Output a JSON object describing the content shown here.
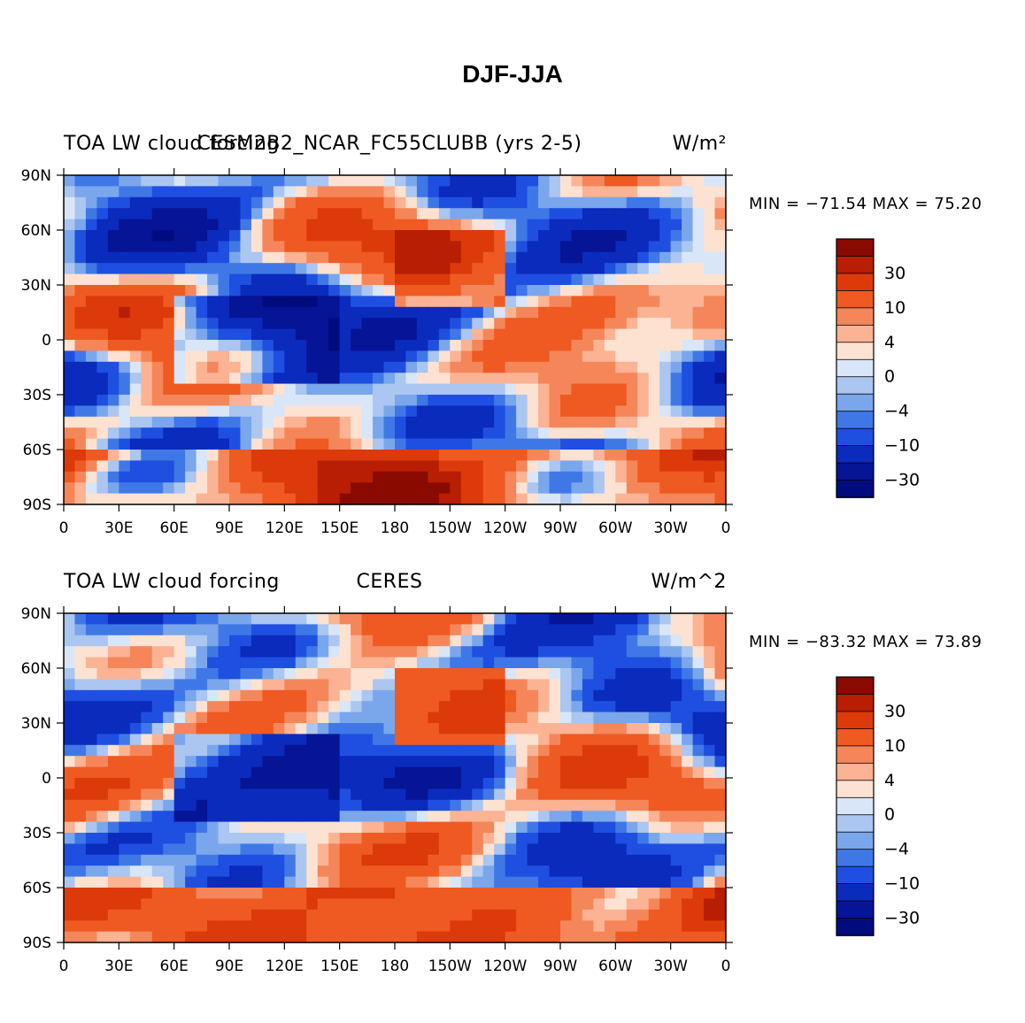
{
  "figure": {
    "title": "DJF-JJA"
  },
  "chart_data": [
    {
      "type": "heatmap",
      "panel": "model",
      "left_label": "TOA LW cloud forcing",
      "center_label": "CESM2B2_NCAR_FC55CLUBB (yrs 2-5)",
      "units_label": "W/m²",
      "stats": "MIN = −71.54 MAX =  75.20",
      "min": -71.54,
      "max": 75.2,
      "x_ticks": [
        "0",
        "30E",
        "60E",
        "90E",
        "120E",
        "150E",
        "180",
        "150W",
        "120W",
        "90W",
        "60W",
        "30W",
        "0"
      ],
      "y_ticks": [
        "90N",
        "60N",
        "30N",
        "0",
        "30S",
        "60S",
        "90S"
      ],
      "colorbar_labels": [
        "30",
        "10",
        "4",
        "0",
        "−4",
        "−10",
        "−30"
      ]
    },
    {
      "type": "heatmap",
      "panel": "observations",
      "left_label": "TOA LW cloud forcing",
      "center_label": "CERES",
      "units_label": "W/m^2",
      "stats": "MIN = −83.32 MAX =  73.89",
      "min": -83.32,
      "max": 73.89,
      "x_ticks": [
        "0",
        "30E",
        "60E",
        "90E",
        "120E",
        "150E",
        "180",
        "150W",
        "120W",
        "90W",
        "60W",
        "30W",
        "0"
      ],
      "y_ticks": [
        "90N",
        "60N",
        "30N",
        "0",
        "30S",
        "60S",
        "90S"
      ],
      "colorbar_labels": [
        "30",
        "10",
        "4",
        "0",
        "−4",
        "−10",
        "−30"
      ]
    }
  ],
  "colorbar_colors": [
    "#8b0a00",
    "#b71e03",
    "#dc3a0a",
    "#ee5a22",
    "#f5865a",
    "#fbb393",
    "#fde2d2",
    "#d8e6f8",
    "#aac6f1",
    "#7aa6ec",
    "#3f78e6",
    "#1f4fe0",
    "#0b2bbd",
    "#061496",
    "#000c7e"
  ]
}
